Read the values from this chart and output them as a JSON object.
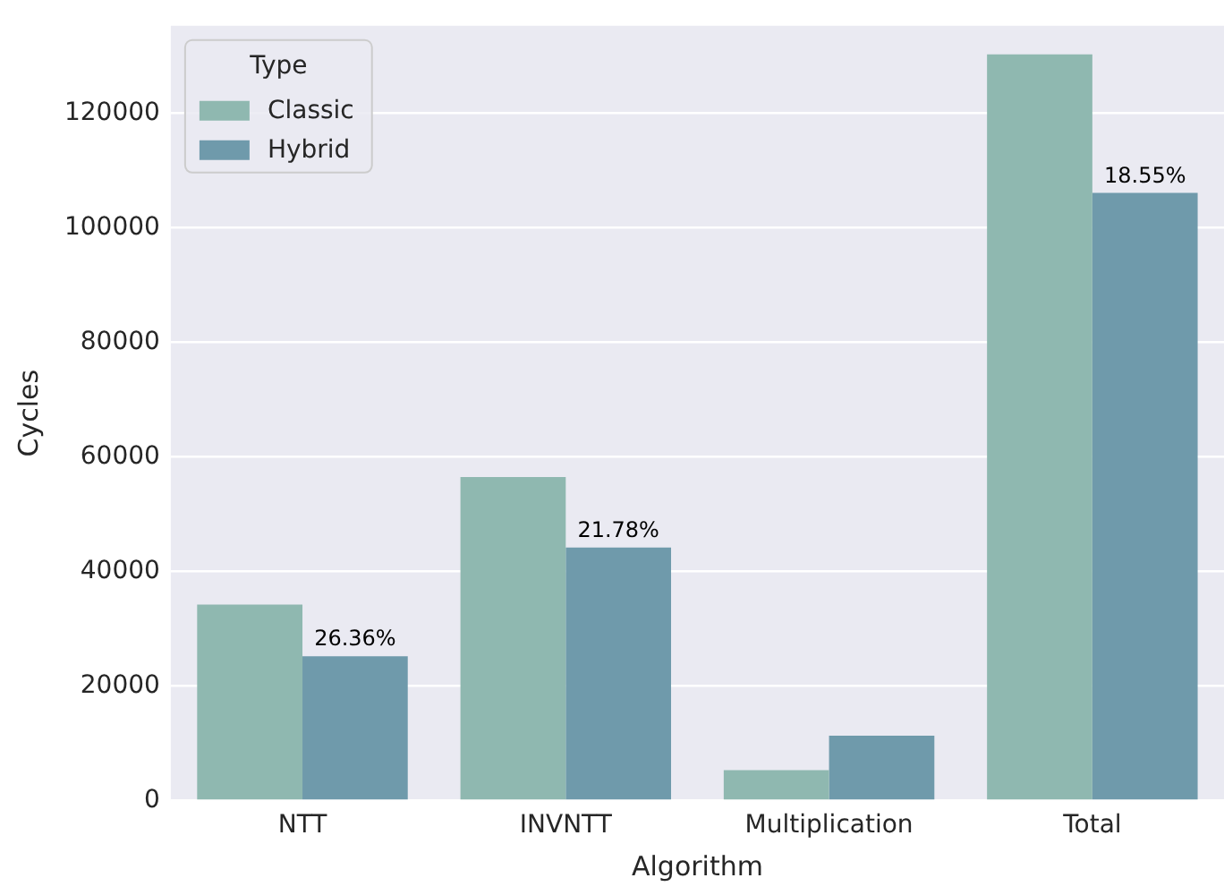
{
  "chart_data": {
    "type": "bar",
    "xlabel": "Algorithm",
    "ylabel": "Cycles",
    "legend_title": "Type",
    "legend": "top left",
    "grid": "y",
    "categories": [
      "NTT",
      "INVNTT",
      "Multiplication",
      "Total"
    ],
    "series": [
      {
        "name": "Classic",
        "color": "#8fb8b0",
        "values": [
          34200,
          56500,
          5300,
          130300
        ]
      },
      {
        "name": "Hybrid",
        "color": "#6f9aab",
        "values": [
          25200,
          44200,
          11300,
          106100
        ]
      }
    ],
    "annotations": [
      {
        "text": "26.36%",
        "x": "NTT",
        "y": 25200
      },
      {
        "text": "21.78%",
        "x": "INVNTT",
        "y": 44200
      },
      {
        "text": "18.55%",
        "x": "Total",
        "y": 106100
      }
    ],
    "ylim": [
      0,
      135300
    ],
    "yticks": [
      0,
      20000,
      40000,
      60000,
      80000,
      100000,
      120000
    ]
  }
}
